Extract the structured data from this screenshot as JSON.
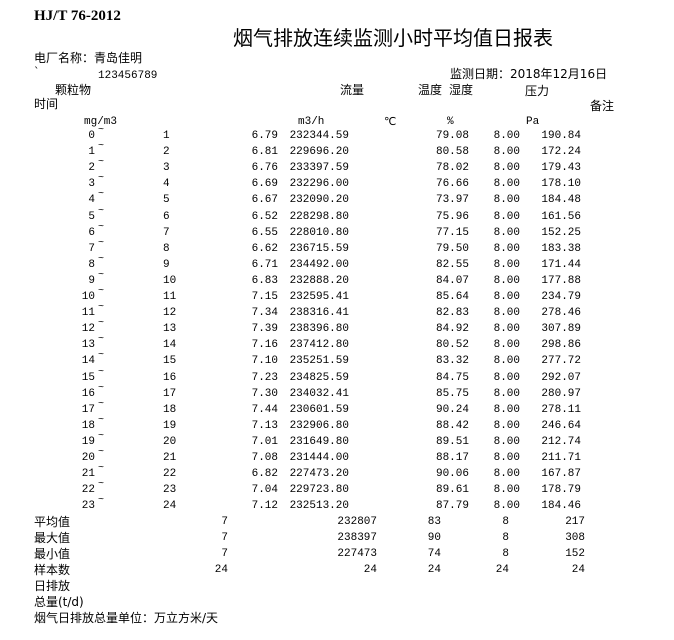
{
  "standard": "HJ/T 76-2012",
  "title": "烟气排放连续监测小时平均值日报表",
  "plant_label": "电厂名称：青岛佳明",
  "backtick": "`",
  "plant_code": "123456789",
  "date_label": "监测日期：2018年12月16日",
  "headers": {
    "particulate": "颗粒物",
    "flow": "流量",
    "temperature": "温度",
    "humidity": "湿度",
    "pressure": "压力",
    "time": "时间",
    "remarks": "备注"
  },
  "units": {
    "particulate": "mg/m3",
    "flow": "m3/h",
    "temperature": "℃",
    "humidity": "%",
    "pressure": "Pa"
  },
  "tilde": "~",
  "rows": [
    [
      "0",
      "1",
      "6.79",
      "232344.59",
      "79.08",
      "8.00",
      "190.84"
    ],
    [
      "1",
      "2",
      "6.81",
      "229696.20",
      "80.58",
      "8.00",
      "172.24"
    ],
    [
      "2",
      "3",
      "6.76",
      "233397.59",
      "78.02",
      "8.00",
      "179.43"
    ],
    [
      "3",
      "4",
      "6.69",
      "232296.00",
      "76.66",
      "8.00",
      "178.10"
    ],
    [
      "4",
      "5",
      "6.67",
      "232090.20",
      "73.97",
      "8.00",
      "184.48"
    ],
    [
      "5",
      "6",
      "6.52",
      "228298.80",
      "75.96",
      "8.00",
      "161.56"
    ],
    [
      "6",
      "7",
      "6.55",
      "228010.80",
      "77.15",
      "8.00",
      "152.25"
    ],
    [
      "7",
      "8",
      "6.62",
      "236715.59",
      "79.50",
      "8.00",
      "183.38"
    ],
    [
      "8",
      "9",
      "6.71",
      "234492.00",
      "82.55",
      "8.00",
      "171.44"
    ],
    [
      "9",
      "10",
      "6.83",
      "232888.20",
      "84.07",
      "8.00",
      "177.88"
    ],
    [
      "10",
      "11",
      "7.15",
      "232595.41",
      "85.64",
      "8.00",
      "234.79"
    ],
    [
      "11",
      "12",
      "7.34",
      "238316.41",
      "82.83",
      "8.00",
      "278.46"
    ],
    [
      "12",
      "13",
      "7.39",
      "238396.80",
      "84.92",
      "8.00",
      "307.89"
    ],
    [
      "13",
      "14",
      "7.16",
      "237412.80",
      "80.52",
      "8.00",
      "298.86"
    ],
    [
      "14",
      "15",
      "7.10",
      "235251.59",
      "83.32",
      "8.00",
      "277.72"
    ],
    [
      "15",
      "16",
      "7.23",
      "234825.59",
      "84.75",
      "8.00",
      "292.07"
    ],
    [
      "16",
      "17",
      "7.30",
      "234032.41",
      "85.75",
      "8.00",
      "280.97"
    ],
    [
      "17",
      "18",
      "7.44",
      "230601.59",
      "90.24",
      "8.00",
      "278.11"
    ],
    [
      "18",
      "19",
      "7.13",
      "232906.80",
      "88.42",
      "8.00",
      "246.64"
    ],
    [
      "19",
      "20",
      "7.01",
      "231649.80",
      "89.51",
      "8.00",
      "212.74"
    ],
    [
      "20",
      "21",
      "7.08",
      "231444.00",
      "88.17",
      "8.00",
      "211.71"
    ],
    [
      "21",
      "22",
      "6.82",
      "227473.20",
      "90.06",
      "8.00",
      "167.87"
    ],
    [
      "22",
      "23",
      "7.04",
      "229723.80",
      "89.61",
      "8.00",
      "178.79"
    ],
    [
      "23",
      "24",
      "7.12",
      "232513.20",
      "87.79",
      "8.00",
      "184.46"
    ]
  ],
  "summary": [
    {
      "label": "平均值",
      "values": [
        "7",
        "232807",
        "83",
        "8",
        "217"
      ]
    },
    {
      "label": "最大值",
      "values": [
        "7",
        "238397",
        "90",
        "8",
        "308"
      ]
    },
    {
      "label": "最小值",
      "values": [
        "7",
        "227473",
        "74",
        "8",
        "152"
      ]
    },
    {
      "label": "样本数",
      "values": [
        "24",
        "24",
        "24",
        "24",
        "24"
      ]
    }
  ],
  "daily_emission_label_1": "日排放",
  "daily_emission_label_2": "总量(t/d)",
  "flue_gas_unit_note": "烟气日排放总量单位：万立方米/天"
}
